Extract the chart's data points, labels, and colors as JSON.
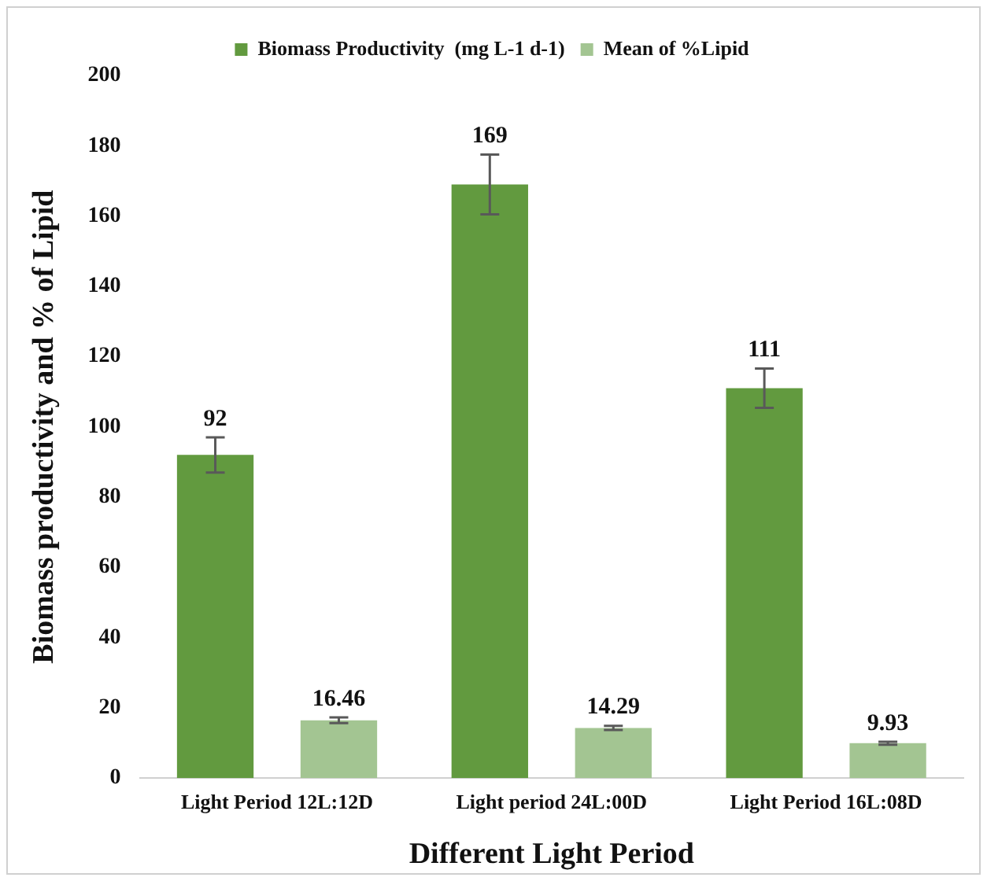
{
  "chart_data": {
    "type": "bar",
    "xlabel": "Different Light Period",
    "ylabel": "Biomass productivity and % of Lipid",
    "categories": [
      "Light Period 12L:12D",
      "Light period 24L:00D",
      "Light Period 16L:08D"
    ],
    "series": [
      {
        "name": "Biomass Productivity  (mg L-1 d-1)",
        "color": "#629a3f",
        "values": [
          92,
          169,
          111
        ],
        "errors": [
          5,
          8.5,
          5.6
        ],
        "value_labels": [
          "92",
          "169",
          "111"
        ]
      },
      {
        "name": "Mean of %Lipid",
        "color": "#a3c592",
        "values": [
          16.46,
          14.29,
          9.93
        ],
        "errors": [
          0.8,
          0.6,
          0.4
        ],
        "data_labels": true
      }
    ],
    "ylim": [
      0,
      200
    ],
    "yticks": [
      0,
      20,
      40,
      60,
      80,
      100,
      120,
      140,
      160,
      180,
      200
    ],
    "grid": false,
    "legend": "top"
  }
}
